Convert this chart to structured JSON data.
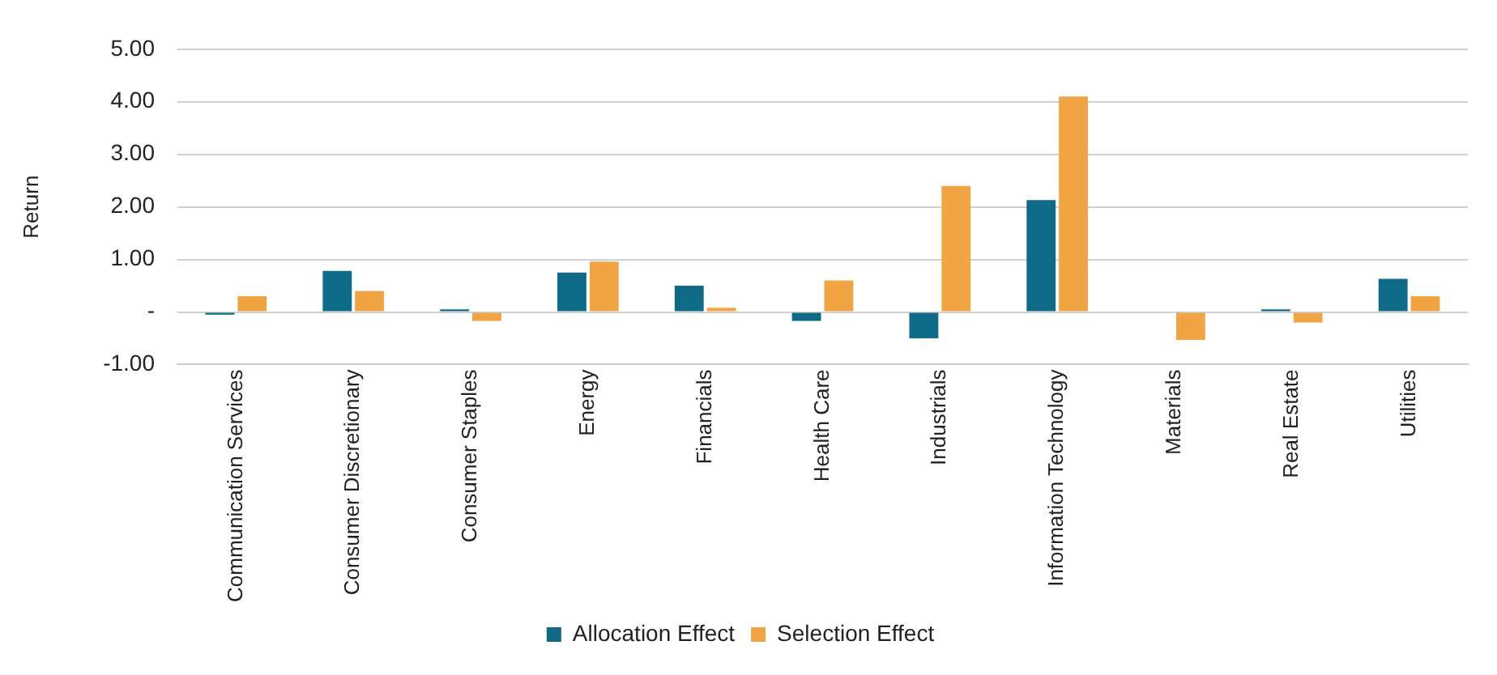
{
  "chart_data": {
    "type": "bar",
    "ylabel": "Return",
    "categories": [
      "Communication Services",
      "Consumer Discretionary",
      "Consumer Staples",
      "Energy",
      "Financials",
      "Health Care",
      "Industrials",
      "Information Technology",
      "Materials",
      "Real Estate",
      "Utilities"
    ],
    "series": [
      {
        "name": "Allocation Effect",
        "color": "#0e6a86",
        "values": [
          -0.05,
          0.78,
          0.05,
          0.75,
          0.5,
          -0.17,
          -0.5,
          2.13,
          0,
          0.05,
          0.63
        ]
      },
      {
        "name": "Selection Effect",
        "color": "#f0a444",
        "values": [
          0.3,
          0.4,
          -0.17,
          0.96,
          0.08,
          0.6,
          2.4,
          4.1,
          -0.53,
          -0.2,
          0.3
        ]
      }
    ],
    "ylim": [
      -1,
      5
    ],
    "yticks": [
      {
        "value": -1,
        "label": "-1.00"
      },
      {
        "value": 0,
        "label": "-"
      },
      {
        "value": 1,
        "label": "1.00"
      },
      {
        "value": 2,
        "label": "2.00"
      },
      {
        "value": 3,
        "label": "3.00"
      },
      {
        "value": 4,
        "label": "4.00"
      },
      {
        "value": 5,
        "label": "5.00"
      }
    ],
    "grid": "y",
    "legend": "bottom"
  }
}
